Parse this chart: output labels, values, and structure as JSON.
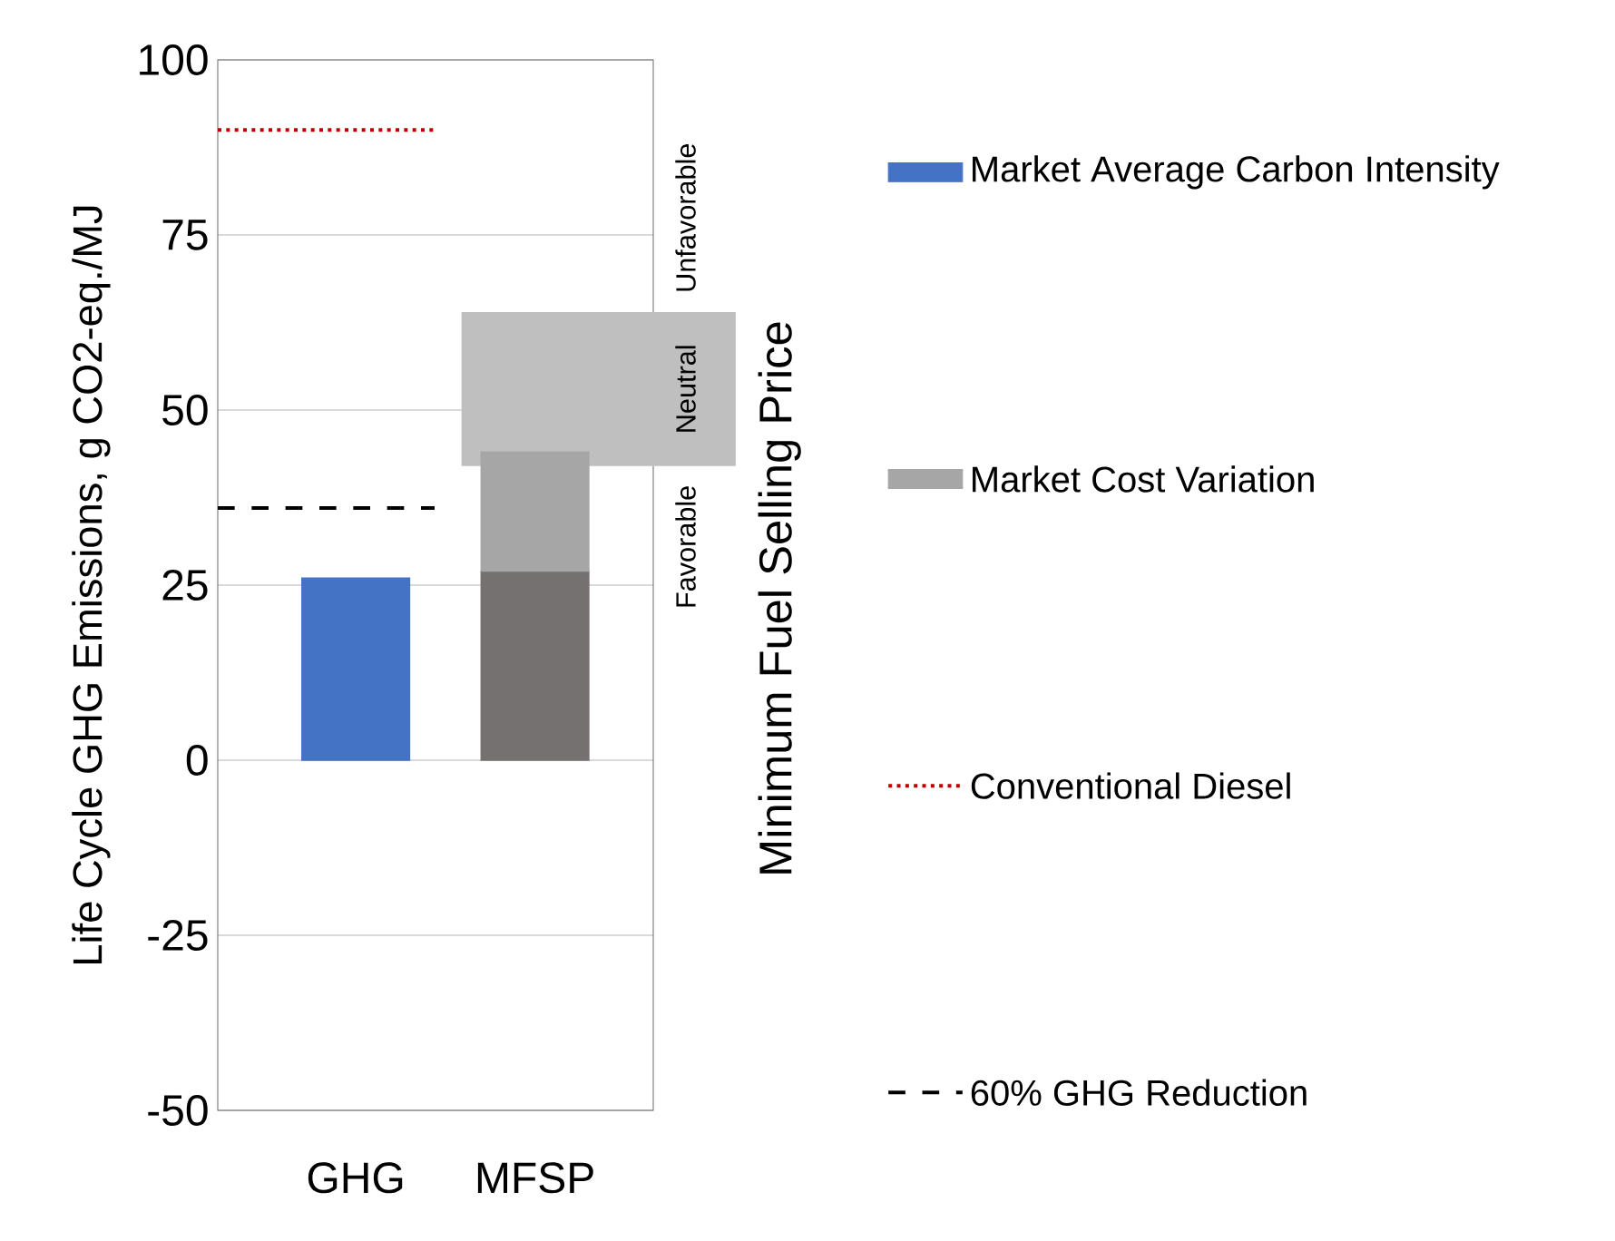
{
  "chart_data": {
    "type": "bar",
    "stacked": true,
    "ylabel": "Life Cycle GHG Emissions, g CO2-eq./MJ",
    "y2label": "Minimum Fuel Selling Price",
    "categories": [
      "GHG",
      "MFSP"
    ],
    "series": [
      {
        "name": "Market Average Carbon Intensity",
        "color": "#4472c4",
        "values": [
          26,
          null
        ]
      },
      {
        "color": "#767171",
        "values": [
          null,
          27
        ]
      },
      {
        "name": "Market Cost Variation",
        "color": "#a6a6a6",
        "values": [
          null,
          17
        ]
      }
    ],
    "ylim": [
      -50,
      100
    ],
    "yticks": [
      -50,
      -25,
      0,
      25,
      50,
      75,
      100
    ],
    "grid": "y",
    "legend": "right",
    "ref_lines": [
      {
        "axis": "y",
        "value": 90,
        "label": "Conventional Diesel",
        "color": "#c00000",
        "line_style": "dotted"
      },
      {
        "axis": "y",
        "value": 36,
        "label": "60% GHG Reduction",
        "color": "#000000",
        "line_style": "dashed"
      }
    ],
    "bands": [
      {
        "axis": "y",
        "from": 42,
        "to": 64,
        "label": "Neutral",
        "color": "#bfbfbf"
      }
    ],
    "annotations": [
      "Favorable",
      "Unfavorable"
    ]
  }
}
